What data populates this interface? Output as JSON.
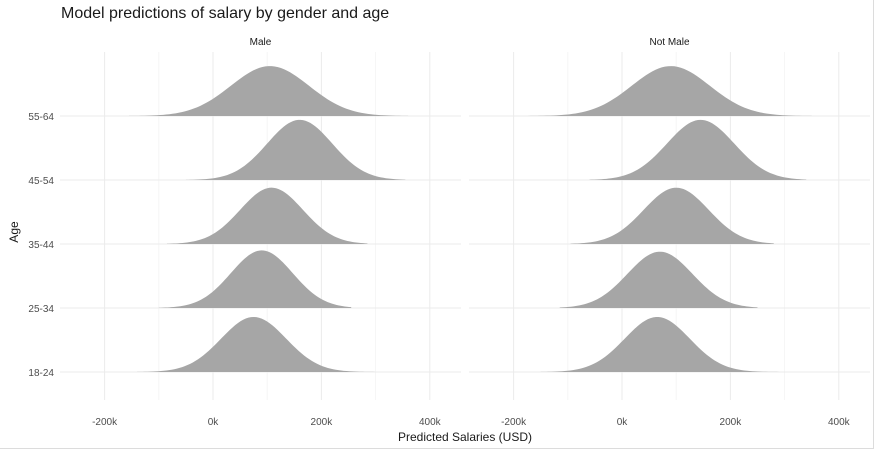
{
  "chart_data": {
    "type": "area",
    "subtype": "ridgeline-density",
    "title": "Model predictions of salary by gender and age",
    "xlabel": "Predicted Salaries (USD)",
    "ylabel": "Age",
    "facets": [
      "Male",
      "Not Male"
    ],
    "categories": [
      "18-24",
      "25-34",
      "35-44",
      "45-54",
      "55-64"
    ],
    "x_ticks": [
      -200000,
      0,
      200000,
      400000
    ],
    "x_tick_labels": [
      "-200k",
      "0k",
      "200k",
      "400k"
    ],
    "xlim": [
      -300000,
      450000
    ],
    "fill_color": "#a6a6a6",
    "grid": true,
    "densities": {
      "Male": [
        {
          "age": "18-24",
          "mean": 75000,
          "sd": 60000,
          "min": -140000,
          "max": 300000,
          "rel_height": 0.86
        },
        {
          "age": "25-34",
          "mean": 90000,
          "sd": 57000,
          "min": -100000,
          "max": 255000,
          "rel_height": 0.9
        },
        {
          "age": "35-44",
          "mean": 108000,
          "sd": 58000,
          "min": -85000,
          "max": 285000,
          "rel_height": 0.88
        },
        {
          "age": "45-54",
          "mean": 160000,
          "sd": 60000,
          "min": -50000,
          "max": 355000,
          "rel_height": 0.94
        },
        {
          "age": "55-64",
          "mean": 105000,
          "sd": 72000,
          "min": -155000,
          "max": 360000,
          "rel_height": 0.78
        }
      ],
      "Not Male": [
        {
          "age": "18-24",
          "mean": 65000,
          "sd": 60000,
          "min": -150000,
          "max": 295000,
          "rel_height": 0.86
        },
        {
          "age": "25-34",
          "mean": 70000,
          "sd": 60000,
          "min": -115000,
          "max": 250000,
          "rel_height": 0.88
        },
        {
          "age": "35-44",
          "mean": 100000,
          "sd": 60000,
          "min": -95000,
          "max": 280000,
          "rel_height": 0.88
        },
        {
          "age": "45-54",
          "mean": 145000,
          "sd": 62000,
          "min": -60000,
          "max": 340000,
          "rel_height": 0.94
        },
        {
          "age": "55-64",
          "mean": 90000,
          "sd": 72000,
          "min": -180000,
          "max": 350000,
          "rel_height": 0.78
        }
      ]
    }
  }
}
